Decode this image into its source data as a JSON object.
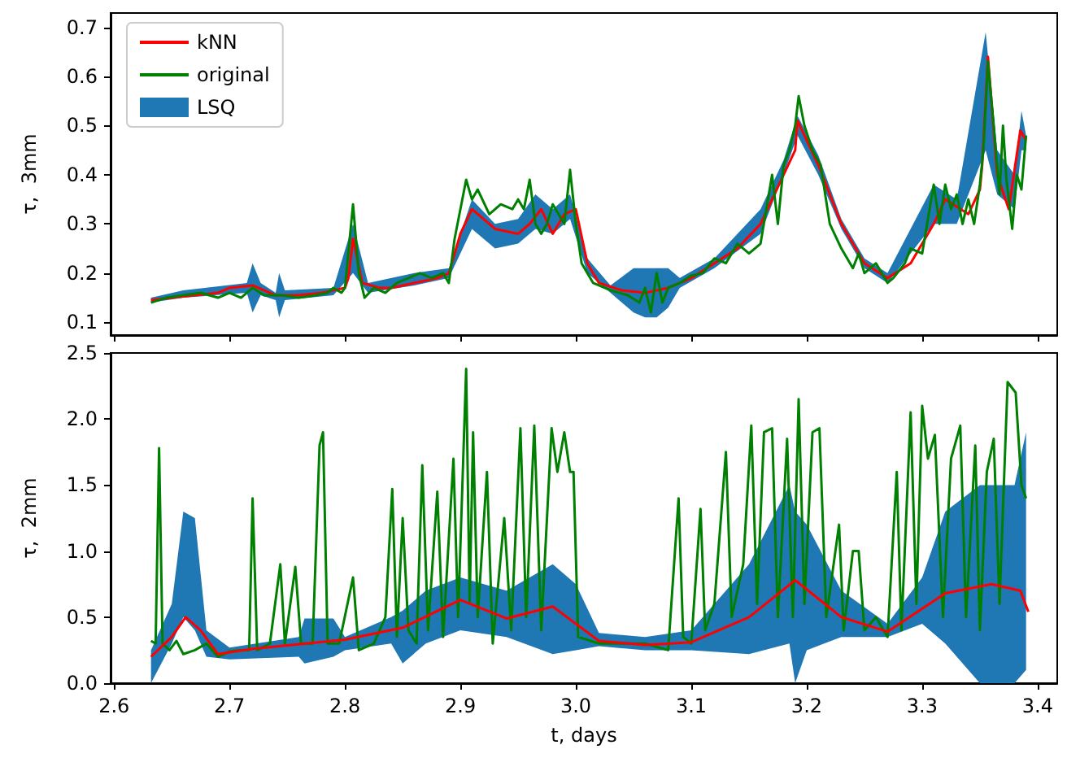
{
  "chart_data": [
    {
      "type": "line",
      "ylabel": "τ,  3mm",
      "xlim": [
        2.597,
        3.417
      ],
      "ylim": [
        0.074,
        0.729
      ],
      "xticks": [
        2.6,
        2.7,
        2.8,
        2.9,
        3.0,
        3.1,
        3.2,
        3.3,
        3.4
      ],
      "yticks": [
        0.1,
        0.2,
        0.3,
        0.4,
        0.5,
        0.6,
        0.7
      ],
      "tick_labels": "y",
      "grid": false,
      "legend": "top left",
      "series": [
        {
          "name": "kNN",
          "color": "#ff0000",
          "x": [
            2.632,
            2.65,
            2.67,
            2.69,
            2.7,
            2.72,
            2.74,
            2.76,
            2.78,
            2.8,
            2.803,
            2.807,
            2.815,
            2.83,
            2.84,
            2.86,
            2.88,
            2.89,
            2.9,
            2.91,
            2.93,
            2.95,
            2.96,
            2.97,
            2.98,
            2.99,
            3.0,
            3.01,
            3.02,
            3.04,
            3.06,
            3.08,
            3.1,
            3.12,
            3.14,
            3.16,
            3.18,
            3.19,
            3.192,
            3.21,
            3.23,
            3.25,
            3.27,
            3.29,
            3.31,
            3.32,
            3.34,
            3.35,
            3.352,
            3.357,
            3.365,
            3.375,
            3.385,
            3.39
          ],
          "values": [
            0.145,
            0.15,
            0.155,
            0.16,
            0.17,
            0.175,
            0.155,
            0.155,
            0.16,
            0.17,
            0.19,
            0.27,
            0.18,
            0.17,
            0.17,
            0.18,
            0.19,
            0.2,
            0.28,
            0.33,
            0.29,
            0.28,
            0.3,
            0.33,
            0.28,
            0.32,
            0.33,
            0.22,
            0.18,
            0.165,
            0.16,
            0.17,
            0.19,
            0.22,
            0.25,
            0.3,
            0.4,
            0.45,
            0.51,
            0.42,
            0.3,
            0.22,
            0.19,
            0.22,
            0.3,
            0.35,
            0.32,
            0.37,
            0.42,
            0.64,
            0.4,
            0.33,
            0.49,
            0.47
          ]
        },
        {
          "name": "original",
          "color": "#008000",
          "x": [
            2.632,
            2.645,
            2.66,
            2.675,
            2.69,
            2.7,
            2.71,
            2.72,
            2.73,
            2.745,
            2.76,
            2.775,
            2.785,
            2.79,
            2.797,
            2.8,
            2.807,
            2.812,
            2.817,
            2.825,
            2.835,
            2.845,
            2.855,
            2.865,
            2.875,
            2.885,
            2.89,
            2.895,
            2.9,
            2.905,
            2.91,
            2.915,
            2.925,
            2.935,
            2.945,
            2.95,
            2.955,
            2.96,
            2.965,
            2.97,
            2.975,
            2.98,
            2.985,
            2.99,
            2.995,
            3.0,
            3.005,
            3.015,
            3.03,
            3.045,
            3.055,
            3.06,
            3.065,
            3.07,
            3.075,
            3.08,
            3.09,
            3.1,
            3.11,
            3.12,
            3.13,
            3.14,
            3.15,
            3.16,
            3.165,
            3.17,
            3.175,
            3.18,
            3.185,
            3.19,
            3.193,
            3.198,
            3.205,
            3.212,
            3.22,
            3.23,
            3.24,
            3.245,
            3.25,
            3.26,
            3.265,
            3.27,
            3.275,
            3.285,
            3.29,
            3.3,
            3.31,
            3.315,
            3.32,
            3.325,
            3.33,
            3.335,
            3.34,
            3.345,
            3.35,
            3.353,
            3.357,
            3.362,
            3.367,
            3.37,
            3.373,
            3.378,
            3.382,
            3.386,
            3.39
          ],
          "values": [
            0.14,
            0.15,
            0.155,
            0.16,
            0.15,
            0.16,
            0.15,
            0.17,
            0.155,
            0.155,
            0.15,
            0.155,
            0.16,
            0.17,
            0.16,
            0.17,
            0.34,
            0.2,
            0.15,
            0.17,
            0.16,
            0.18,
            0.19,
            0.2,
            0.19,
            0.2,
            0.18,
            0.27,
            0.33,
            0.39,
            0.35,
            0.37,
            0.32,
            0.34,
            0.33,
            0.35,
            0.33,
            0.39,
            0.3,
            0.28,
            0.3,
            0.34,
            0.32,
            0.3,
            0.41,
            0.3,
            0.22,
            0.18,
            0.165,
            0.155,
            0.14,
            0.17,
            0.12,
            0.2,
            0.14,
            0.17,
            0.18,
            0.195,
            0.2,
            0.23,
            0.22,
            0.26,
            0.24,
            0.26,
            0.33,
            0.4,
            0.3,
            0.42,
            0.45,
            0.5,
            0.56,
            0.5,
            0.45,
            0.42,
            0.3,
            0.25,
            0.21,
            0.24,
            0.2,
            0.22,
            0.2,
            0.18,
            0.19,
            0.22,
            0.25,
            0.24,
            0.38,
            0.3,
            0.38,
            0.33,
            0.36,
            0.3,
            0.35,
            0.3,
            0.38,
            0.45,
            0.63,
            0.5,
            0.36,
            0.5,
            0.39,
            0.29,
            0.4,
            0.37,
            0.48
          ]
        },
        {
          "name": "LSQ",
          "color": "#1f77b4",
          "x": [
            2.632,
            2.66,
            2.715,
            2.72,
            2.727,
            2.74,
            2.743,
            2.748,
            2.79,
            2.807,
            2.82,
            2.86,
            2.89,
            2.91,
            2.93,
            2.95,
            2.965,
            2.98,
            2.995,
            3.01,
            3.03,
            3.05,
            3.06,
            3.07,
            3.08,
            3.09,
            3.12,
            3.16,
            3.18,
            3.192,
            3.21,
            3.23,
            3.25,
            3.27,
            3.31,
            3.33,
            3.355,
            3.365,
            3.38,
            3.386,
            3.39
          ],
          "values": [
            null,
            null,
            null,
            null,
            null,
            null,
            null,
            null,
            null,
            null,
            null,
            null,
            null,
            null,
            null,
            null,
            null,
            null,
            null,
            null,
            null,
            null,
            null,
            null,
            null,
            null,
            null,
            null,
            null,
            null,
            null,
            null,
            null,
            null,
            null,
            null,
            null,
            null,
            null,
            null,
            null
          ],
          "lower": [
            0.14,
            0.15,
            0.16,
            0.12,
            0.155,
            0.145,
            0.11,
            0.145,
            0.155,
            0.2,
            0.16,
            0.175,
            0.19,
            0.29,
            0.25,
            0.26,
            0.29,
            0.28,
            0.31,
            0.2,
            0.16,
            0.12,
            0.11,
            0.11,
            0.13,
            0.17,
            0.21,
            0.28,
            0.4,
            0.48,
            0.4,
            0.29,
            0.21,
            0.18,
            0.3,
            0.3,
            0.45,
            0.36,
            0.33,
            0.45,
            0.45
          ],
          "upper": [
            0.15,
            0.165,
            0.18,
            0.22,
            0.18,
            0.16,
            0.2,
            0.165,
            0.17,
            0.3,
            0.18,
            0.2,
            0.21,
            0.35,
            0.3,
            0.31,
            0.36,
            0.33,
            0.36,
            0.23,
            0.175,
            0.21,
            0.21,
            0.21,
            0.21,
            0.19,
            0.23,
            0.33,
            0.43,
            0.52,
            0.44,
            0.31,
            0.23,
            0.2,
            0.38,
            0.35,
            0.69,
            0.45,
            0.4,
            0.53,
            0.48
          ]
        }
      ]
    },
    {
      "type": "line",
      "xlabel": "t, days",
      "ylabel": "τ,  2mm",
      "xlim": [
        2.597,
        3.417
      ],
      "ylim": [
        0,
        2.5
      ],
      "xticks": [
        {
          "value": 2.6,
          "label": "2.6"
        },
        {
          "value": 2.7,
          "label": "2.7"
        },
        {
          "value": 2.8,
          "label": "2.8"
        },
        {
          "value": 2.9,
          "label": "2.9"
        },
        {
          "value": 3.0,
          "label": "3.0"
        },
        {
          "value": 3.1,
          "label": "3.1"
        },
        {
          "value": 3.2,
          "label": "3.2"
        },
        {
          "value": 3.3,
          "label": "3.3"
        },
        {
          "value": 3.4,
          "label": "3.4"
        }
      ],
      "yticks": [
        {
          "value": 0,
          "label": "0.0"
        },
        0.5,
        {
          "value": 1,
          "label": "1.0"
        },
        1.5,
        {
          "value": 2,
          "label": "2.0"
        },
        2.5
      ],
      "grid": false,
      "series": [
        {
          "color": "#1f77b4",
          "x": [
            2.632,
            2.65,
            2.66,
            2.67,
            2.68,
            2.7,
            2.76,
            2.765,
            2.79,
            2.8,
            2.84,
            2.85,
            2.87,
            2.9,
            2.94,
            2.98,
            3.0,
            3.02,
            3.06,
            3.1,
            3.15,
            3.185,
            3.19,
            3.2,
            3.23,
            3.27,
            3.3,
            3.32,
            3.35,
            3.38,
            3.39
          ],
          "values": [
            null,
            null,
            null,
            null,
            null,
            null,
            null,
            null,
            null,
            null,
            null,
            null,
            null,
            null,
            null,
            null,
            null,
            null,
            null,
            null,
            null,
            null,
            null,
            null,
            null,
            null,
            null,
            null,
            null,
            null,
            null
          ],
          "lower": [
            0.0,
            0.3,
            0.5,
            0.4,
            0.2,
            0.18,
            0.2,
            0.15,
            0.2,
            0.25,
            0.3,
            0.15,
            0.3,
            0.4,
            0.35,
            0.22,
            0.25,
            0.28,
            0.25,
            0.25,
            0.22,
            0.3,
            0.0,
            0.25,
            0.35,
            0.35,
            0.45,
            0.3,
            0.0,
            0.0,
            0.1
          ],
          "upper": [
            0.25,
            0.6,
            1.3,
            1.25,
            0.4,
            0.27,
            0.35,
            0.49,
            0.49,
            0.35,
            0.5,
            0.55,
            0.7,
            0.8,
            0.7,
            0.9,
            0.75,
            0.38,
            0.35,
            0.4,
            0.9,
            1.5,
            1.3,
            1.2,
            0.7,
            0.45,
            0.8,
            1.3,
            1.5,
            1.5,
            1.9
          ]
        },
        {
          "color": "#008000",
          "x": [
            2.632,
            2.636,
            2.639,
            2.642,
            2.648,
            2.654,
            2.66,
            2.67,
            2.68,
            2.69,
            2.7,
            2.71,
            2.717,
            2.72,
            2.724,
            2.735,
            2.744,
            2.748,
            2.757,
            2.762,
            2.772,
            2.778,
            2.781,
            2.785,
            2.795,
            2.807,
            2.812,
            2.825,
            2.835,
            2.841,
            2.845,
            2.85,
            2.855,
            2.862,
            2.867,
            2.872,
            2.88,
            2.885,
            2.894,
            2.898,
            2.905,
            2.908,
            2.911,
            2.915,
            2.923,
            2.928,
            2.938,
            2.944,
            2.952,
            2.957,
            2.964,
            2.97,
            2.979,
            2.984,
            2.99,
            2.995,
            2.998,
            3.002,
            3.02,
            3.04,
            3.06,
            3.08,
            3.089,
            3.093,
            3.1,
            3.108,
            3.112,
            3.12,
            3.13,
            3.135,
            3.145,
            3.152,
            3.157,
            3.163,
            3.17,
            3.175,
            3.183,
            3.188,
            3.193,
            3.198,
            3.205,
            3.211,
            3.217,
            3.228,
            3.232,
            3.24,
            3.245,
            3.25,
            3.26,
            3.27,
            3.278,
            3.282,
            3.29,
            3.295,
            3.3,
            3.305,
            3.311,
            3.318,
            3.325,
            3.333,
            3.338,
            3.346,
            3.35,
            3.356,
            3.362,
            3.367,
            3.372,
            3.374,
            3.381,
            3.386,
            3.39
          ],
          "values": [
            0.32,
            0.3,
            1.78,
            0.3,
            0.25,
            0.32,
            0.22,
            0.25,
            0.3,
            0.2,
            0.24,
            0.25,
            0.25,
            1.4,
            0.25,
            0.3,
            0.9,
            0.3,
            0.88,
            0.3,
            0.3,
            1.8,
            1.9,
            0.3,
            0.3,
            0.8,
            0.25,
            0.3,
            0.5,
            1.47,
            0.35,
            1.25,
            0.4,
            0.3,
            1.65,
            0.4,
            1.45,
            0.35,
            1.7,
            0.5,
            2.38,
            0.6,
            1.9,
            0.5,
            1.6,
            0.3,
            1.25,
            0.4,
            1.93,
            0.5,
            1.95,
            0.4,
            1.93,
            1.6,
            1.9,
            1.6,
            1.6,
            0.35,
            0.3,
            0.3,
            0.3,
            0.25,
            1.4,
            0.35,
            0.3,
            1.32,
            0.4,
            0.6,
            1.75,
            0.5,
            0.9,
            1.95,
            0.6,
            1.9,
            1.93,
            0.5,
            1.85,
            0.5,
            2.15,
            0.6,
            1.9,
            1.93,
            0.5,
            1.2,
            0.4,
            1.0,
            1.0,
            0.4,
            0.5,
            0.35,
            1.6,
            0.4,
            2.05,
            0.6,
            2.1,
            1.7,
            1.88,
            0.5,
            1.7,
            1.95,
            0.5,
            1.8,
            0.4,
            1.6,
            1.85,
            0.6,
            1.8,
            2.28,
            2.2,
            1.5,
            1.4
          ]
        },
        {
          "color": "#ff0000",
          "x": [
            2.632,
            2.65,
            2.662,
            2.675,
            2.69,
            2.72,
            2.8,
            2.85,
            2.9,
            2.94,
            2.98,
            3.02,
            3.06,
            3.1,
            3.15,
            3.19,
            3.23,
            3.27,
            3.32,
            3.36,
            3.385,
            3.392
          ],
          "values": [
            0.2,
            0.35,
            0.5,
            0.4,
            0.22,
            0.26,
            0.33,
            0.42,
            0.63,
            0.49,
            0.58,
            0.32,
            0.29,
            0.31,
            0.5,
            0.78,
            0.5,
            0.39,
            0.68,
            0.75,
            0.7,
            0.54
          ]
        }
      ]
    }
  ]
}
